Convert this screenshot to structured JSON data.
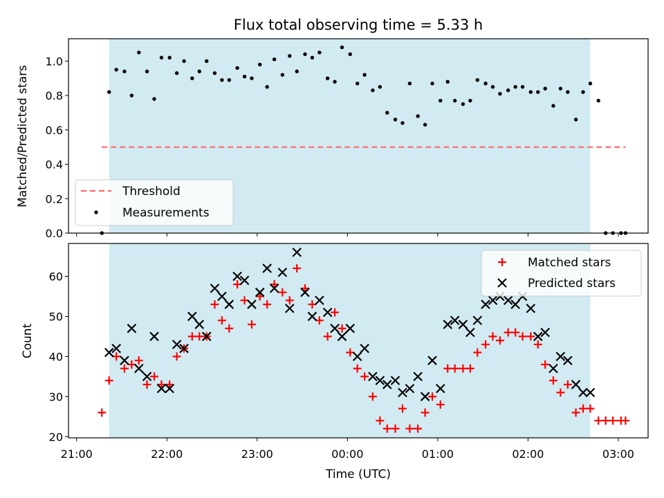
{
  "chart_data": {
    "title": "Flux total observing time = 5.33 h",
    "xlabel": "Time (UTC)",
    "x_tick_labels": [
      "21:00",
      "22:00",
      "23:00",
      "00:00",
      "01:00",
      "02:00",
      "03:00"
    ],
    "x_tick_hours": [
      0,
      1,
      2,
      3,
      4,
      5,
      6
    ],
    "x_start_time": "21:00",
    "xlim": [
      -0.09,
      6.33
    ],
    "shaded_interval": [
      0.36,
      5.69
    ],
    "shade_color": "#add8e6",
    "top": {
      "type": "scatter",
      "ylabel": "Matched/Predicted stars",
      "ylim": [
        0,
        1.13
      ],
      "yticks": [
        "0.0",
        "0.2",
        "0.4",
        "0.6",
        "0.8",
        "1.0"
      ],
      "threshold": 0.5,
      "threshold_range": [
        0.28,
        6.08
      ],
      "threshold_color": "#ff6666",
      "legend": [
        "Threshold",
        "Measurements"
      ],
      "x": [
        0.28,
        0.36,
        0.44,
        0.53,
        0.61,
        0.69,
        0.78,
        0.86,
        0.94,
        1.03,
        1.11,
        1.19,
        1.28,
        1.36,
        1.44,
        1.53,
        1.61,
        1.69,
        1.78,
        1.86,
        1.94,
        2.03,
        2.11,
        2.19,
        2.28,
        2.36,
        2.44,
        2.53,
        2.61,
        2.69,
        2.78,
        2.86,
        2.94,
        3.03,
        3.11,
        3.19,
        3.28,
        3.36,
        3.44,
        3.53,
        3.61,
        3.69,
        3.78,
        3.86,
        3.94,
        4.03,
        4.11,
        4.19,
        4.28,
        4.36,
        4.44,
        4.53,
        4.61,
        4.69,
        4.78,
        4.86,
        4.94,
        5.03,
        5.11,
        5.19,
        5.28,
        5.36,
        5.44,
        5.53,
        5.61,
        5.69,
        5.78,
        5.86,
        5.94,
        6.03,
        6.08
      ],
      "y": [
        0.0,
        0.82,
        0.95,
        0.94,
        0.8,
        1.05,
        0.94,
        0.78,
        1.02,
        1.02,
        0.93,
        1.0,
        0.9,
        0.94,
        1.0,
        0.93,
        0.89,
        0.89,
        0.96,
        0.91,
        0.9,
        0.98,
        0.85,
        1.01,
        0.92,
        1.03,
        0.94,
        1.04,
        1.02,
        1.05,
        0.9,
        0.88,
        1.08,
        1.04,
        0.87,
        0.92,
        0.83,
        0.85,
        0.7,
        0.66,
        0.64,
        0.87,
        0.68,
        0.63,
        0.87,
        0.77,
        0.88,
        0.77,
        0.75,
        0.77,
        0.89,
        0.87,
        0.85,
        0.81,
        0.83,
        0.85,
        0.85,
        0.82,
        0.82,
        0.84,
        0.74,
        0.84,
        0.82,
        0.66,
        0.82,
        0.87,
        0.77,
        0.0,
        0.0,
        0.0,
        0.0
      ]
    },
    "bottom": {
      "type": "scatter",
      "ylabel": "Count",
      "ylim": [
        19.7,
        68.2
      ],
      "yticks": [
        "20",
        "30",
        "40",
        "50",
        "60"
      ],
      "legend": [
        "Matched stars",
        "Predicted stars"
      ],
      "matched_color": "#ff0000",
      "predicted_color": "#000000",
      "matched": {
        "x": [
          0.28,
          0.36,
          0.44,
          0.53,
          0.61,
          0.69,
          0.78,
          0.86,
          0.94,
          1.03,
          1.11,
          1.19,
          1.28,
          1.36,
          1.44,
          1.53,
          1.61,
          1.69,
          1.78,
          1.86,
          1.94,
          2.03,
          2.11,
          2.19,
          2.28,
          2.36,
          2.44,
          2.53,
          2.61,
          2.69,
          2.78,
          2.86,
          2.94,
          3.03,
          3.11,
          3.19,
          3.28,
          3.36,
          3.44,
          3.53,
          3.61,
          3.69,
          3.78,
          3.86,
          3.94,
          4.03,
          4.11,
          4.19,
          4.28,
          4.36,
          4.44,
          4.53,
          4.61,
          4.69,
          4.78,
          4.86,
          4.94,
          5.03,
          5.11,
          5.19,
          5.28,
          5.36,
          5.44,
          5.53,
          5.61,
          5.69,
          5.78,
          5.86,
          5.94,
          6.03,
          6.08
        ],
        "y": [
          26,
          34,
          40,
          37,
          38,
          39,
          33,
          35,
          33,
          33,
          40,
          42,
          45,
          45,
          45,
          53,
          49,
          47,
          58,
          54,
          48,
          55,
          53,
          58,
          56,
          54,
          62,
          57,
          53,
          49,
          45,
          51,
          47,
          41,
          37,
          35,
          30,
          24,
          22,
          22,
          27,
          22,
          22,
          26,
          30,
          28,
          37,
          37,
          37,
          37,
          41,
          43,
          45,
          44,
          46,
          46,
          45,
          45,
          43,
          38,
          34,
          31,
          33,
          26,
          27,
          27,
          24,
          24,
          24,
          24,
          24
        ]
      },
      "predicted": {
        "x": [
          0.36,
          0.44,
          0.53,
          0.61,
          0.69,
          0.78,
          0.86,
          0.94,
          1.03,
          1.11,
          1.19,
          1.28,
          1.36,
          1.44,
          1.53,
          1.61,
          1.69,
          1.78,
          1.86,
          1.94,
          2.03,
          2.11,
          2.19,
          2.28,
          2.36,
          2.44,
          2.53,
          2.61,
          2.69,
          2.78,
          2.86,
          2.94,
          3.03,
          3.11,
          3.19,
          3.28,
          3.36,
          3.44,
          3.53,
          3.61,
          3.69,
          3.78,
          3.86,
          3.94,
          4.03,
          4.11,
          4.19,
          4.28,
          4.36,
          4.44,
          4.53,
          4.61,
          4.69,
          4.78,
          4.86,
          4.94,
          5.03,
          5.11,
          5.19,
          5.28,
          5.36,
          5.44,
          5.53,
          5.61,
          5.69
        ],
        "y": [
          41,
          42,
          39,
          47,
          37,
          35,
          45,
          32,
          32,
          43,
          42,
          50,
          48,
          45,
          57,
          55,
          53,
          60,
          59,
          53,
          56,
          62,
          57,
          61,
          52,
          66,
          56,
          50,
          54,
          51,
          47,
          45,
          47,
          40,
          42,
          35,
          34,
          33,
          34,
          31,
          32,
          35,
          30,
          39,
          32,
          48,
          49,
          48,
          46,
          49,
          53,
          54,
          55,
          54,
          53,
          55,
          52,
          45,
          46,
          37,
          40,
          39,
          33,
          31,
          31
        ]
      }
    }
  }
}
